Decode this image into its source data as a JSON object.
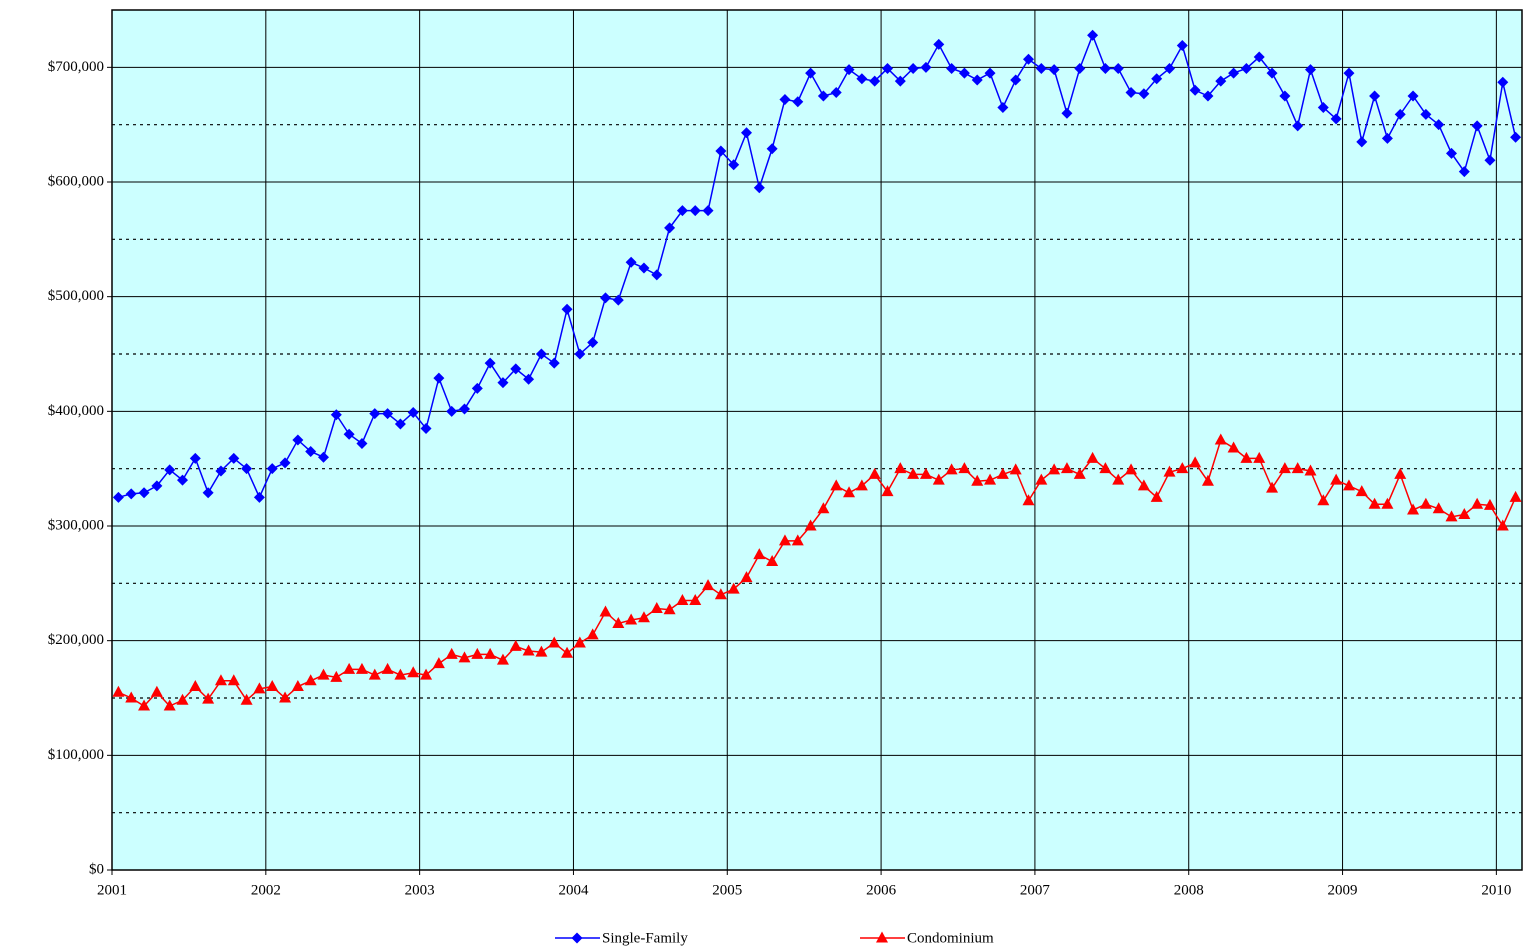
{
  "chart_data": {
    "type": "line",
    "categories": [
      "2001",
      null,
      null,
      null,
      null,
      null,
      null,
      null,
      null,
      null,
      null,
      null,
      "2002",
      null,
      null,
      null,
      null,
      null,
      null,
      null,
      null,
      null,
      null,
      null,
      "2003",
      null,
      null,
      null,
      null,
      null,
      null,
      null,
      null,
      null,
      null,
      null,
      "2004",
      null,
      null,
      null,
      null,
      null,
      null,
      null,
      null,
      null,
      null,
      null,
      "2005",
      null,
      null,
      null,
      null,
      null,
      null,
      null,
      null,
      null,
      null,
      null,
      "2006",
      null,
      null,
      null,
      null,
      null,
      null,
      null,
      null,
      null,
      null,
      null,
      "2007",
      null,
      null,
      null,
      null,
      null,
      null,
      null,
      null,
      null,
      null,
      null,
      "2008",
      null,
      null,
      null,
      null,
      null,
      null,
      null,
      null,
      null,
      null,
      null,
      "2009",
      null,
      null,
      null,
      null,
      null,
      null,
      null,
      null,
      null,
      null,
      null,
      "2010",
      null
    ],
    "series": [
      {
        "name": "Single-Family",
        "color": "#0000ff",
        "marker": "diamond",
        "values": [
          325000,
          328000,
          329000,
          335000,
          349000,
          340000,
          359000,
          329000,
          348000,
          359000,
          350000,
          325000,
          350000,
          355000,
          375000,
          365000,
          360000,
          397000,
          380000,
          372000,
          398000,
          398000,
          389000,
          399000,
          385000,
          429000,
          400000,
          402000,
          420000,
          442000,
          425000,
          437000,
          428000,
          450000,
          442000,
          489000,
          450000,
          460000,
          499000,
          497000,
          530000,
          525000,
          519000,
          560000,
          575000,
          575000,
          575000,
          627000,
          615000,
          643000,
          595000,
          629000,
          672000,
          670000,
          695000,
          675000,
          678000,
          698000,
          690000,
          688000,
          699000,
          688000,
          699000,
          700000,
          720000,
          699000,
          695000,
          689000,
          695000,
          665000,
          689000,
          707000,
          699000,
          698000,
          660000,
          699000,
          728000,
          699000,
          699000,
          678000,
          677000,
          690000,
          699000,
          719000,
          680000,
          675000,
          688000,
          695000,
          699000,
          709000,
          695000,
          675000,
          649000,
          698000,
          665000,
          655000,
          695000,
          635000,
          675000,
          638000,
          659000,
          675000,
          659000,
          650000,
          625000,
          609000,
          649000,
          619000,
          687000,
          639000
        ]
      },
      {
        "name": "Condominium",
        "color": "#ff0000",
        "marker": "triangle",
        "values": [
          155000,
          150000,
          143000,
          155000,
          143000,
          148000,
          160000,
          149000,
          165000,
          165000,
          148000,
          158000,
          160000,
          150000,
          160000,
          165000,
          170000,
          168000,
          175000,
          175000,
          170000,
          175000,
          170000,
          172000,
          170000,
          180000,
          188000,
          185000,
          188000,
          188000,
          183000,
          195000,
          191000,
          190000,
          198000,
          189000,
          198000,
          205000,
          225000,
          215000,
          218000,
          220000,
          228000,
          227000,
          235000,
          235000,
          248000,
          240000,
          245000,
          255000,
          275000,
          269000,
          287000,
          287000,
          300000,
          315000,
          335000,
          329000,
          335000,
          345000,
          330000,
          350000,
          345000,
          345000,
          340000,
          349000,
          350000,
          339000,
          340000,
          345000,
          349000,
          322000,
          340000,
          349000,
          350000,
          345000,
          359000,
          350000,
          340000,
          349000,
          335000,
          325000,
          347000,
          350000,
          355000,
          339000,
          375000,
          368000,
          359000,
          359000,
          333000,
          350000,
          350000,
          348000,
          322000,
          340000,
          335000,
          330000,
          319000,
          319000,
          345000,
          314000,
          319000,
          315000,
          308000,
          310000,
          319000,
          318000,
          300000,
          325000
        ]
      }
    ],
    "ylim": [
      0,
      750000
    ],
    "yticks": [
      {
        "value": 0,
        "label": "$0"
      },
      {
        "value": 100000,
        "label": "$100,000"
      },
      {
        "value": 200000,
        "label": "$200,000"
      },
      {
        "value": 300000,
        "label": "$300,000"
      },
      {
        "value": 400000,
        "label": "$400,000"
      },
      {
        "value": 500000,
        "label": "$500,000"
      },
      {
        "value": 600000,
        "label": "$600,000"
      },
      {
        "value": 700000,
        "label": "$700,000"
      }
    ],
    "minor_yticks": [
      50000,
      150000,
      250000,
      350000,
      450000,
      550000,
      650000
    ],
    "grid": true,
    "background": "#ccffff",
    "legend": "bottom"
  }
}
